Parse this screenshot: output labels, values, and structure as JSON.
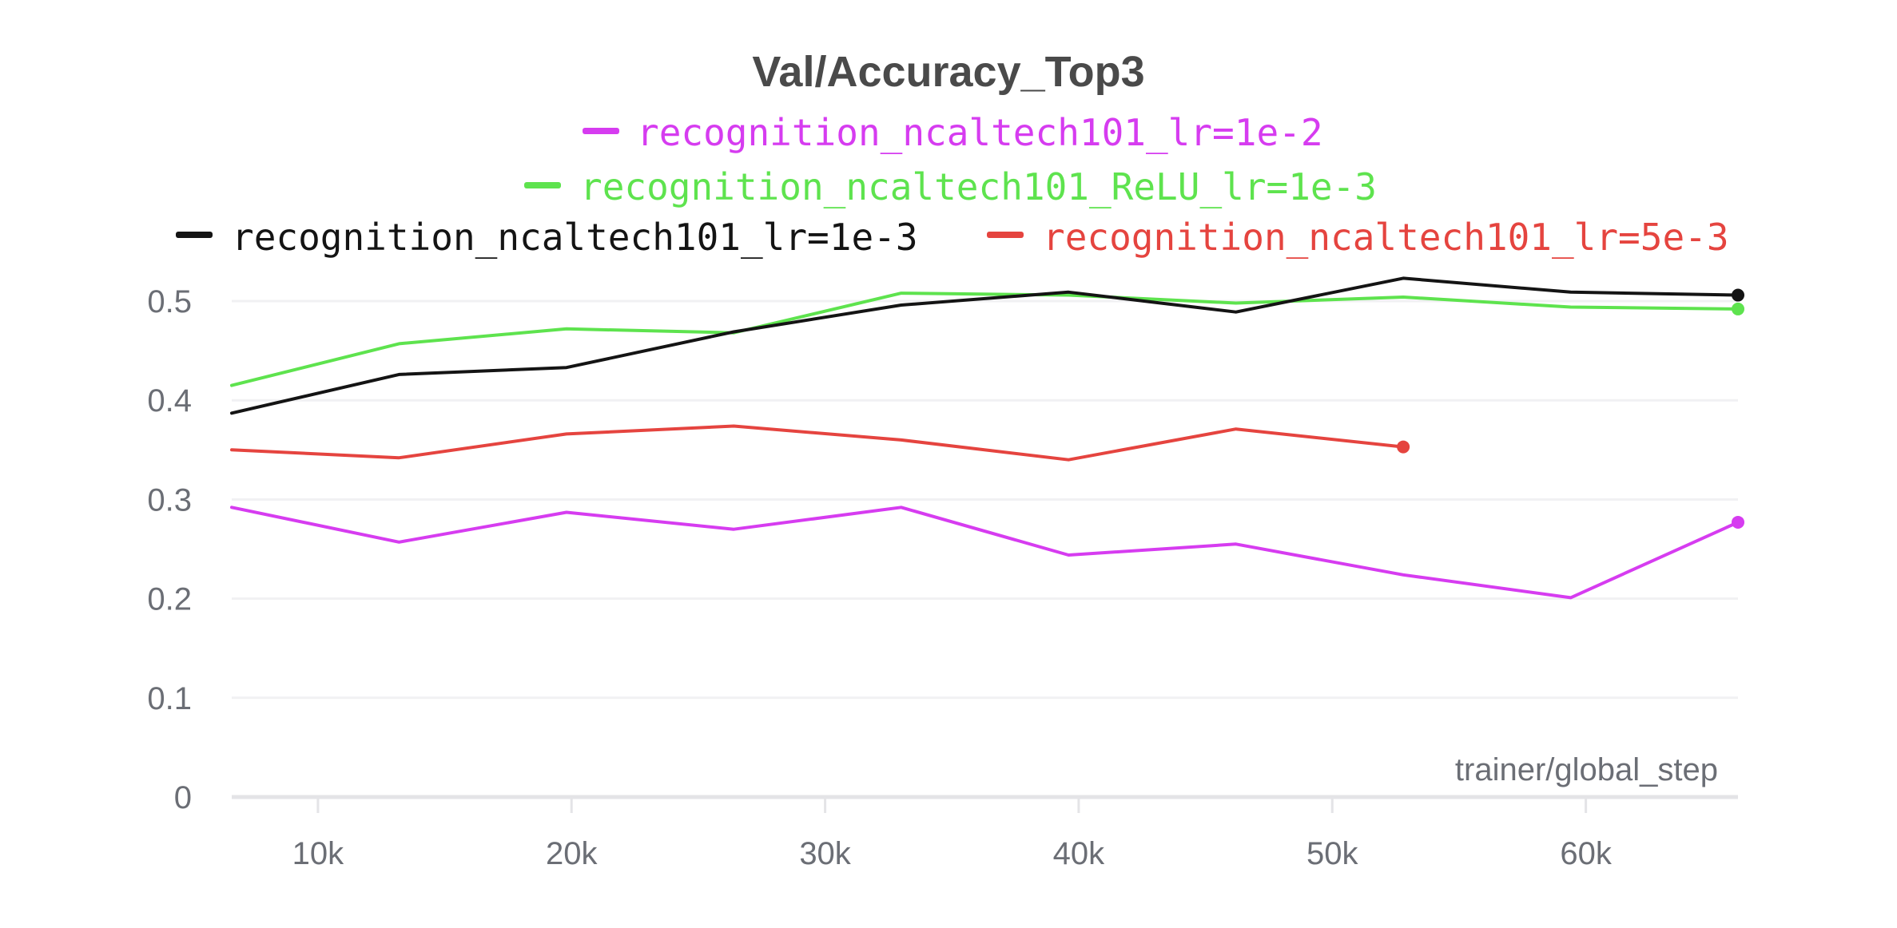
{
  "chart_data": {
    "type": "line",
    "title": "Val/Accuracy_Top3",
    "xlabel": "trainer/global_step",
    "ylabel": "",
    "xlim": [
      6600,
      66000
    ],
    "ylim": [
      0,
      0.5
    ],
    "x_ticks": [
      {
        "value": 10000,
        "label": "10k"
      },
      {
        "value": 20000,
        "label": "20k"
      },
      {
        "value": 30000,
        "label": "30k"
      },
      {
        "value": 40000,
        "label": "40k"
      },
      {
        "value": 50000,
        "label": "50k"
      },
      {
        "value": 60000,
        "label": "60k"
      }
    ],
    "y_ticks": [
      {
        "value": 0,
        "label": "0"
      },
      {
        "value": 0.1,
        "label": "0.1"
      },
      {
        "value": 0.2,
        "label": "0.2"
      },
      {
        "value": 0.3,
        "label": "0.3"
      },
      {
        "value": 0.4,
        "label": "0.4"
      },
      {
        "value": 0.5,
        "label": "0.5"
      }
    ],
    "grid": true,
    "legend_position": "top",
    "series": [
      {
        "name": "recognition_ncaltech101_lr=1e-2",
        "color": "#d63cf0",
        "x": [
          6600,
          13200,
          19800,
          26400,
          33000,
          39600,
          46200,
          52800,
          59400,
          66000
        ],
        "y": [
          0.292,
          0.257,
          0.287,
          0.27,
          0.292,
          0.244,
          0.255,
          0.224,
          0.201,
          0.277
        ]
      },
      {
        "name": "recognition_ncaltech101_ReLU_lr=1e-3",
        "color": "#5ee34e",
        "x": [
          6600,
          13200,
          19800,
          26400,
          33000,
          39600,
          46200,
          52800,
          59400,
          66000
        ],
        "y": [
          0.415,
          0.457,
          0.472,
          0.468,
          0.508,
          0.506,
          0.498,
          0.504,
          0.494,
          0.492
        ]
      },
      {
        "name": "recognition_ncaltech101_lr=1e-3",
        "color": "#141414",
        "x": [
          6600,
          13200,
          19800,
          26400,
          33000,
          39600,
          46200,
          52800,
          59400,
          66000
        ],
        "y": [
          0.387,
          0.426,
          0.433,
          0.469,
          0.496,
          0.509,
          0.489,
          0.523,
          0.509,
          0.506
        ]
      },
      {
        "name": "recognition_ncaltech101_lr=5e-3",
        "color": "#e5443f",
        "x": [
          6600,
          13200,
          19800,
          26400,
          33000,
          39600,
          46200,
          52800
        ],
        "y": [
          0.35,
          0.342,
          0.366,
          0.374,
          0.36,
          0.34,
          0.371,
          0.353
        ]
      }
    ]
  }
}
